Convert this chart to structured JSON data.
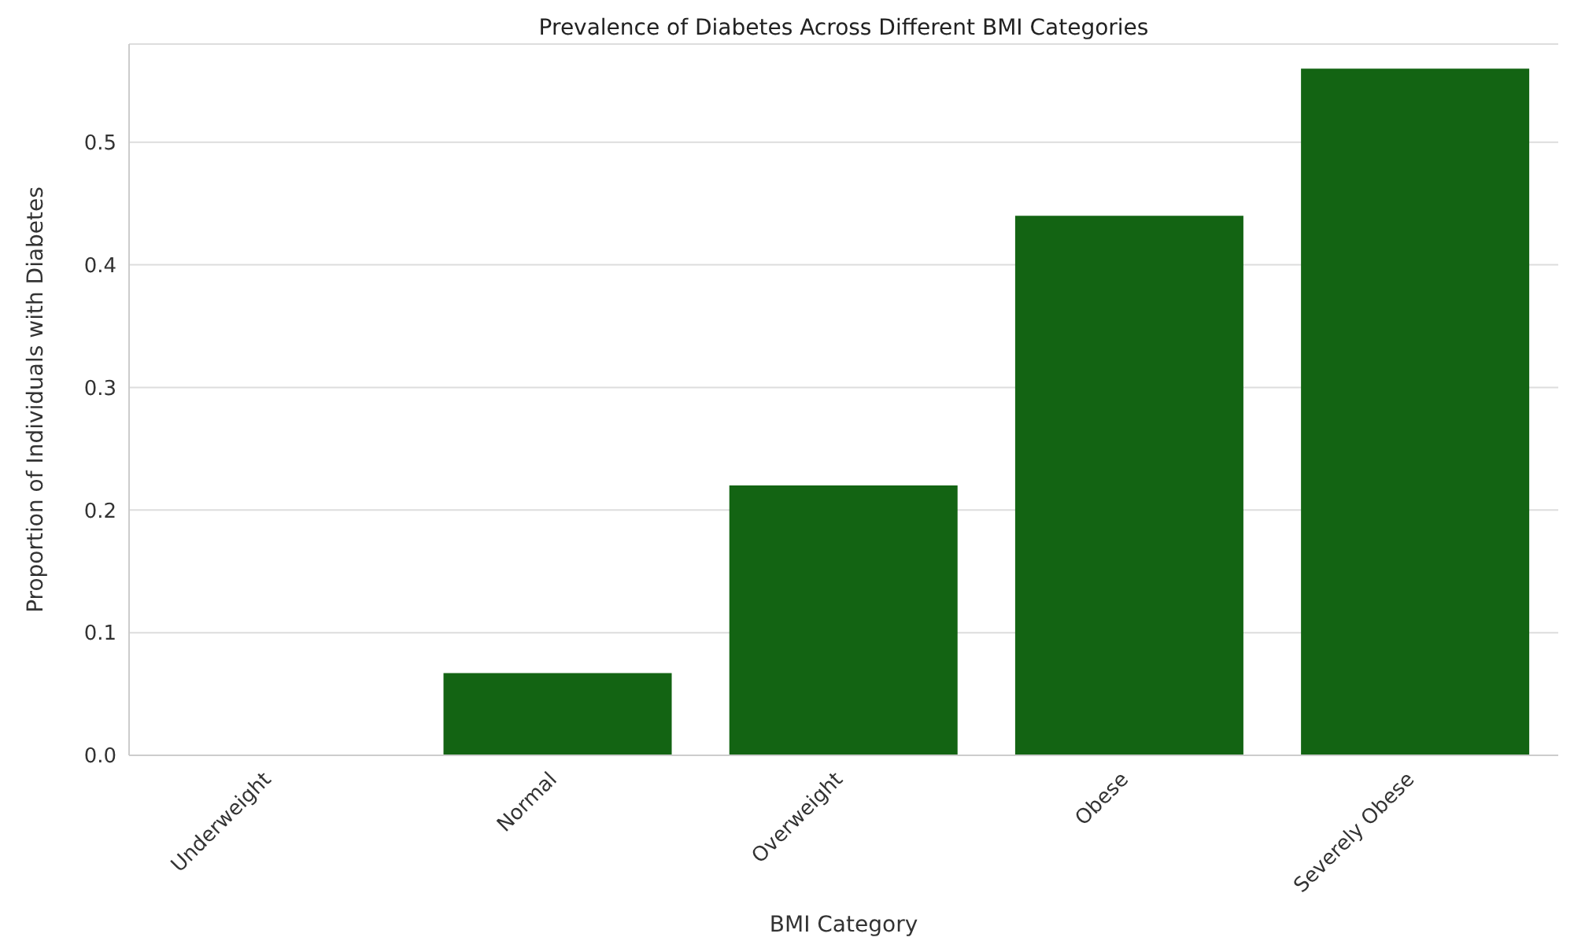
{
  "chart_data": {
    "type": "bar",
    "title": "Prevalence of Diabetes Across Different BMI Categories",
    "xlabel": "BMI Category",
    "ylabel": "Proportion of Individuals with Diabetes",
    "categories": [
      "Underweight",
      "Normal",
      "Overweight",
      "Obese",
      "Severely Obese"
    ],
    "values": [
      0,
      0.067,
      0.22,
      0.44,
      0.56
    ],
    "color": "#136413",
    "ylim": [
      0,
      0.58
    ],
    "yticks": [
      {
        "value": 0,
        "label": "0.0"
      },
      {
        "value": 0.1,
        "label": "0.1"
      },
      {
        "value": 0.2,
        "label": "0.2"
      },
      {
        "value": 0.3,
        "label": "0.3"
      },
      {
        "value": 0.4,
        "label": "0.4"
      },
      {
        "value": 0.5,
        "label": "0.5"
      }
    ],
    "grid": "y"
  }
}
